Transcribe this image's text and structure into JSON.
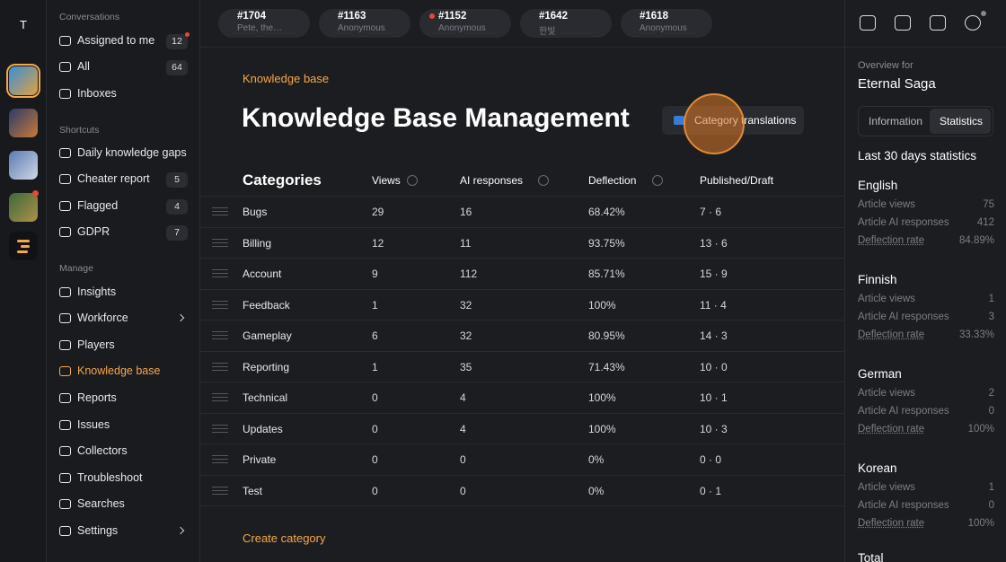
{
  "workspace_initial": "T",
  "sidebar": {
    "sections": [
      {
        "title": "Conversations",
        "items": [
          {
            "label": "Assigned to me",
            "count": 12
          },
          {
            "label": "All",
            "count": 64
          },
          {
            "label": "Inboxes"
          }
        ]
      },
      {
        "title": "Shortcuts",
        "items": [
          {
            "label": "Daily knowledge gaps"
          },
          {
            "label": "Cheater report",
            "count": 5
          },
          {
            "label": "Flagged",
            "count": 4
          },
          {
            "label": "GDPR",
            "count": 7
          }
        ]
      },
      {
        "title": "Manage",
        "items": [
          {
            "label": "Insights"
          },
          {
            "label": "Workforce"
          },
          {
            "label": "Players"
          },
          {
            "label": "Knowledge base"
          },
          {
            "label": "Reports"
          },
          {
            "label": "Issues"
          },
          {
            "label": "Collectors"
          },
          {
            "label": "Troubleshoot"
          },
          {
            "label": "Searches"
          },
          {
            "label": "Settings"
          }
        ]
      }
    ]
  },
  "tabs": [
    {
      "id": "#1704",
      "sub": "Pete, the…"
    },
    {
      "id": "#1163",
      "sub": "Anonymous"
    },
    {
      "id": "#1152",
      "sub": "Anonymous"
    },
    {
      "id": "#1642",
      "sub": "한빛"
    },
    {
      "id": "#1618",
      "sub": "Anonymous"
    }
  ],
  "main": {
    "breadcrumb": "Knowledge base",
    "title": "Knowledge Base Management",
    "button": "Category translations",
    "table": {
      "headers": [
        "Categories",
        "Views",
        "AI responses",
        "Deflection",
        "Published/Draft"
      ],
      "rows": [
        [
          "Bugs",
          29,
          16,
          "68.42%",
          "7 · 6"
        ],
        [
          "Billing",
          12,
          11,
          "93.75%",
          "13 · 6"
        ],
        [
          "Account",
          9,
          112,
          "85.71%",
          "15 · 9"
        ],
        [
          "Feedback",
          1,
          32,
          "100%",
          "11 · 4"
        ],
        [
          "Gameplay",
          6,
          32,
          "80.95%",
          "14 · 3"
        ],
        [
          "Reporting",
          1,
          35,
          "71.43%",
          "10 · 0"
        ],
        [
          "Technical",
          0,
          4,
          "100%",
          "10 · 1"
        ],
        [
          "Updates",
          0,
          4,
          "100%",
          "10 · 3"
        ],
        [
          "Private",
          0,
          0,
          "0%",
          "0 · 0"
        ],
        [
          "Test",
          0,
          0,
          "0%",
          "0 · 1"
        ]
      ]
    },
    "create": "Create category"
  },
  "panel": {
    "overview_label": "Overview for",
    "name": "Eternal Saga",
    "tabs": [
      "Information",
      "Statistics"
    ],
    "stats_title": "Last 30 days statistics",
    "languages": [
      {
        "name": "English",
        "rows": [
          [
            "Article views",
            75
          ],
          [
            "Article AI responses",
            412
          ],
          [
            "Deflection rate",
            "84.89%"
          ]
        ]
      },
      {
        "name": "Finnish",
        "rows": [
          [
            "Article views",
            1
          ],
          [
            "Article AI responses",
            3
          ],
          [
            "Deflection rate",
            "33.33%"
          ]
        ]
      },
      {
        "name": "German",
        "rows": [
          [
            "Article views",
            2
          ],
          [
            "Article AI responses",
            0
          ],
          [
            "Deflection rate",
            "100%"
          ]
        ]
      },
      {
        "name": "Korean",
        "rows": [
          [
            "Article views",
            1
          ],
          [
            "Article AI responses",
            0
          ],
          [
            "Deflection rate",
            "100%"
          ]
        ]
      }
    ],
    "total": "Total"
  }
}
